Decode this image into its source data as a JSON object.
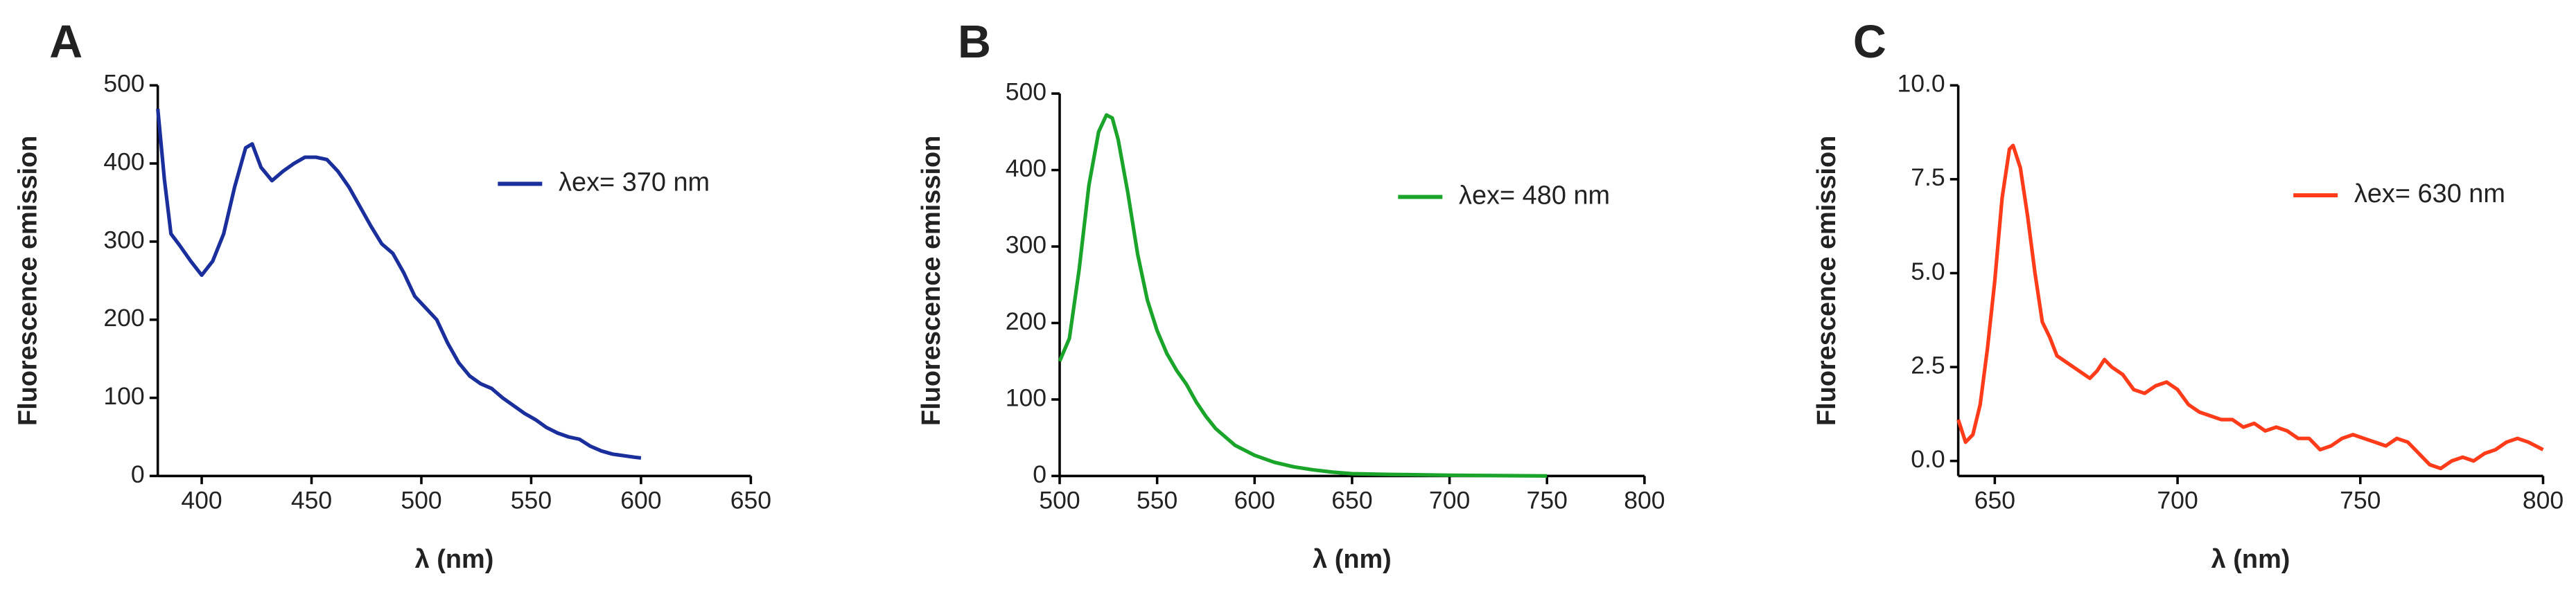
{
  "chart_data": [
    {
      "type": "line",
      "panel_label": "A",
      "x_label": "λ (nm)",
      "y_label": "Fluorescence emission",
      "xlim": [
        380,
        650
      ],
      "xticks": [
        400,
        450,
        500,
        550,
        600,
        650
      ],
      "ylim": [
        0,
        500
      ],
      "yticks": [
        0,
        100,
        200,
        300,
        400,
        500
      ],
      "x": [
        380,
        383,
        386,
        390,
        395,
        400,
        405,
        410,
        415,
        420,
        423,
        427,
        432,
        437,
        442,
        447,
        452,
        457,
        462,
        467,
        472,
        477,
        482,
        487,
        492,
        497,
        502,
        507,
        512,
        517,
        522,
        527,
        532,
        537,
        542,
        547,
        552,
        557,
        562,
        567,
        572,
        577,
        582,
        587,
        592,
        597,
        600
      ],
      "series": [
        {
          "name": "λex= 370 nm",
          "color": "#1a2f9c",
          "values": [
            470,
            380,
            310,
            295,
            275,
            257,
            275,
            310,
            370,
            420,
            425,
            395,
            378,
            390,
            400,
            408,
            408,
            405,
            390,
            370,
            345,
            320,
            297,
            285,
            260,
            230,
            215,
            200,
            170,
            145,
            128,
            118,
            112,
            100,
            90,
            80,
            72,
            62,
            55,
            50,
            47,
            38,
            32,
            28,
            26,
            24,
            23
          ]
        }
      ]
    },
    {
      "type": "line",
      "panel_label": "B",
      "x_label": "λ (nm)",
      "y_label": "Fluorescence emission",
      "xlim": [
        500,
        800
      ],
      "xticks": [
        500,
        550,
        600,
        650,
        700,
        750,
        800
      ],
      "ylim": [
        0,
        500
      ],
      "yticks": [
        0,
        100,
        200,
        300,
        400,
        500
      ],
      "x": [
        500,
        505,
        510,
        515,
        520,
        524,
        527,
        530,
        535,
        540,
        545,
        550,
        555,
        560,
        565,
        570,
        575,
        580,
        590,
        600,
        610,
        620,
        630,
        640,
        650,
        670,
        700,
        750
      ],
      "series": [
        {
          "name": "λex= 480 nm",
          "color": "#1aa52a",
          "values": [
            150,
            180,
            270,
            380,
            450,
            472,
            468,
            440,
            370,
            290,
            230,
            190,
            160,
            138,
            120,
            97,
            78,
            62,
            40,
            27,
            18,
            12,
            8,
            5,
            3,
            2,
            1,
            0
          ]
        }
      ]
    },
    {
      "type": "line",
      "panel_label": "C",
      "x_label": "λ (nm)",
      "y_label": "Fluorescence emission",
      "xlim": [
        640,
        800
      ],
      "xticks": [
        650,
        700,
        750,
        800
      ],
      "ylim": [
        -0.4,
        10
      ],
      "yticks": [
        {
          "value": 0,
          "label": "0.0"
        },
        {
          "value": 2.5,
          "label": "2.5"
        },
        {
          "value": 5,
          "label": "5.0"
        },
        {
          "value": 7.5,
          "label": "7.5"
        },
        {
          "value": 10,
          "label": "10.0"
        }
      ],
      "x": [
        640,
        642,
        644,
        646,
        648,
        650,
        652,
        654,
        655,
        657,
        659,
        661,
        663,
        665,
        667,
        670,
        673,
        676,
        678,
        680,
        682,
        685,
        688,
        691,
        694,
        697,
        700,
        703,
        706,
        709,
        712,
        715,
        718,
        721,
        724,
        727,
        730,
        733,
        736,
        739,
        742,
        745,
        748,
        751,
        754,
        757,
        760,
        763,
        766,
        769,
        772,
        775,
        778,
        781,
        784,
        787,
        790,
        793,
        796,
        800
      ],
      "series": [
        {
          "name": "λex= 630 nm",
          "color": "#ff3b1a",
          "values": [
            1.1,
            0.5,
            0.7,
            1.5,
            3,
            4.8,
            7,
            8.3,
            8.4,
            7.8,
            6.5,
            5,
            3.7,
            3.3,
            2.8,
            2.6,
            2.4,
            2.2,
            2.4,
            2.7,
            2.5,
            2.3,
            1.9,
            1.8,
            2.0,
            2.1,
            1.9,
            1.5,
            1.3,
            1.2,
            1.1,
            1.1,
            0.9,
            1.0,
            0.8,
            0.9,
            0.8,
            0.6,
            0.6,
            0.3,
            0.4,
            0.6,
            0.7,
            0.6,
            0.5,
            0.4,
            0.6,
            0.5,
            0.2,
            -0.1,
            -0.2,
            0.0,
            0.1,
            0.0,
            0.2,
            0.3,
            0.5,
            0.6,
            0.5,
            0.3
          ]
        }
      ]
    }
  ]
}
